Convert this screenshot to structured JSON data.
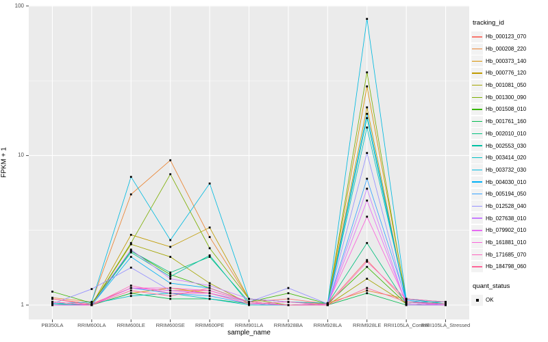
{
  "colors": {
    "panel_bg": "#EBEBEB",
    "grid": "#FFFFFF",
    "legend_key_bg": "#F2F2F2",
    "axis_tick_text": "#4D4D4D",
    "tick_mark": "#333333",
    "point": "#000000"
  },
  "chart_data": {
    "type": "line",
    "title": "",
    "xlabel": "sample_name",
    "ylabel": "FPKM + 1",
    "y_scale": "log10",
    "ylim": [
      1,
      100
    ],
    "y_ticks": [
      1,
      10,
      100
    ],
    "y_tick_labels": [
      "1",
      "10",
      "100"
    ],
    "grid": "white on gray panel, ggplot2 style",
    "legend_position": "right",
    "legend_title": "tracking_id",
    "marker": "black-square",
    "categories": [
      "PB350LA",
      "RRIM600LA",
      "RRIM600LE",
      "RRIM600SE",
      "RRIM600PE",
      "RRIM901LA",
      "RRIM928BA",
      "RRIM928LA",
      "RRIM928LE",
      "RRII105LA_Control",
      "RRII105LA_Stressed"
    ],
    "series": [
      {
        "name": "Hb_000123_070",
        "color": "#F8766D",
        "values": [
          1.1,
          1.02,
          1.3,
          1.25,
          1.25,
          1.05,
          1.1,
          1.02,
          2.0,
          1.05,
          1.02
        ]
      },
      {
        "name": "Hb_000208_220",
        "color": "#EA8331",
        "values": [
          1.12,
          1.05,
          5.5,
          9.3,
          2.85,
          1.1,
          1.05,
          1.03,
          1.25,
          1.1,
          1.05
        ]
      },
      {
        "name": "Hb_000373_140",
        "color": "#D89000",
        "values": [
          1.0,
          1.0,
          1.2,
          1.3,
          1.2,
          1.05,
          1.0,
          1.02,
          29.0,
          1.1,
          1.02
        ]
      },
      {
        "name": "Hb_000776_120",
        "color": "#C09B00",
        "values": [
          1.05,
          1.0,
          2.95,
          2.45,
          3.3,
          1.1,
          1.05,
          1.02,
          21.0,
          1.05,
          1.02
        ]
      },
      {
        "name": "Hb_001081_050",
        "color": "#A3A500",
        "values": [
          1.0,
          1.0,
          2.55,
          2.1,
          1.4,
          1.02,
          1.0,
          1.0,
          1.5,
          1.02,
          1.0
        ]
      },
      {
        "name": "Hb_001300_090",
        "color": "#7CAE00",
        "values": [
          1.05,
          1.0,
          2.6,
          7.5,
          2.4,
          1.1,
          1.0,
          1.02,
          36.0,
          1.05,
          1.0
        ]
      },
      {
        "name": "Hb_001508_010",
        "color": "#39B600",
        "values": [
          1.23,
          1.03,
          2.3,
          1.6,
          1.3,
          1.05,
          1.2,
          1.02,
          1.8,
          1.02,
          1.0
        ]
      },
      {
        "name": "Hb_001761_160",
        "color": "#00BB4E",
        "values": [
          1.0,
          1.0,
          1.2,
          1.1,
          1.1,
          1.02,
          1.0,
          1.0,
          1.2,
          1.0,
          1.0
        ]
      },
      {
        "name": "Hb_002010_010",
        "color": "#00BF7D",
        "values": [
          1.02,
          1.0,
          2.3,
          1.65,
          2.1,
          1.05,
          1.0,
          1.02,
          2.6,
          1.02,
          1.0
        ]
      },
      {
        "name": "Hb_002553_030",
        "color": "#00C1A3",
        "values": [
          1.0,
          1.0,
          2.25,
          1.55,
          2.15,
          1.02,
          1.0,
          1.0,
          17.8,
          1.05,
          1.05
        ]
      },
      {
        "name": "Hb_003414_020",
        "color": "#00BFC4",
        "values": [
          1.0,
          1.02,
          1.15,
          1.2,
          1.1,
          1.0,
          1.0,
          1.0,
          15.4,
          1.1,
          1.05
        ]
      },
      {
        "name": "Hb_003732_030",
        "color": "#00BAE0",
        "values": [
          1.02,
          1.05,
          7.2,
          2.72,
          6.5,
          1.1,
          1.05,
          1.03,
          82.0,
          1.1,
          1.02
        ]
      },
      {
        "name": "Hb_004030_010",
        "color": "#00B0F6",
        "values": [
          1.0,
          1.0,
          2.1,
          1.4,
          1.3,
          1.05,
          1.0,
          1.0,
          19.0,
          1.05,
          1.0
        ]
      },
      {
        "name": "Hb_005194_050",
        "color": "#35A2FF",
        "values": [
          1.0,
          1.0,
          1.3,
          1.2,
          1.15,
          1.02,
          1.0,
          1.0,
          7.0,
          1.08,
          1.0
        ]
      },
      {
        "name": "Hb_012528_040",
        "color": "#9590FF",
        "values": [
          1.02,
          1.28,
          1.78,
          1.25,
          1.2,
          1.05,
          1.3,
          1.02,
          10.4,
          1.02,
          1.0
        ]
      },
      {
        "name": "Hb_027638_010",
        "color": "#C77CFF",
        "values": [
          1.0,
          1.0,
          2.35,
          1.5,
          1.35,
          1.1,
          1.05,
          1.0,
          6.0,
          1.0,
          1.0
        ]
      },
      {
        "name": "Hb_079902_010",
        "color": "#E76BF3",
        "values": [
          1.05,
          1.0,
          1.3,
          1.25,
          1.2,
          1.02,
          1.0,
          1.0,
          5.0,
          1.02,
          1.0
        ]
      },
      {
        "name": "Hb_161881_010",
        "color": "#FA62DB",
        "values": [
          1.0,
          1.0,
          1.3,
          1.3,
          1.25,
          1.05,
          1.0,
          1.02,
          3.9,
          1.05,
          1.0
        ]
      },
      {
        "name": "Hb_171685_070",
        "color": "#FF62BC",
        "values": [
          1.05,
          1.0,
          1.35,
          1.2,
          1.2,
          1.02,
          1.05,
          1.0,
          1.95,
          1.1,
          1.05
        ]
      },
      {
        "name": "Hb_184798_060",
        "color": "#FF6598",
        "values": [
          1.1,
          1.0,
          1.25,
          1.15,
          1.3,
          1.05,
          1.0,
          1.0,
          1.3,
          1.05,
          1.02
        ]
      }
    ],
    "quant_legend": {
      "title": "quant_status",
      "items": [
        "OK"
      ]
    }
  }
}
